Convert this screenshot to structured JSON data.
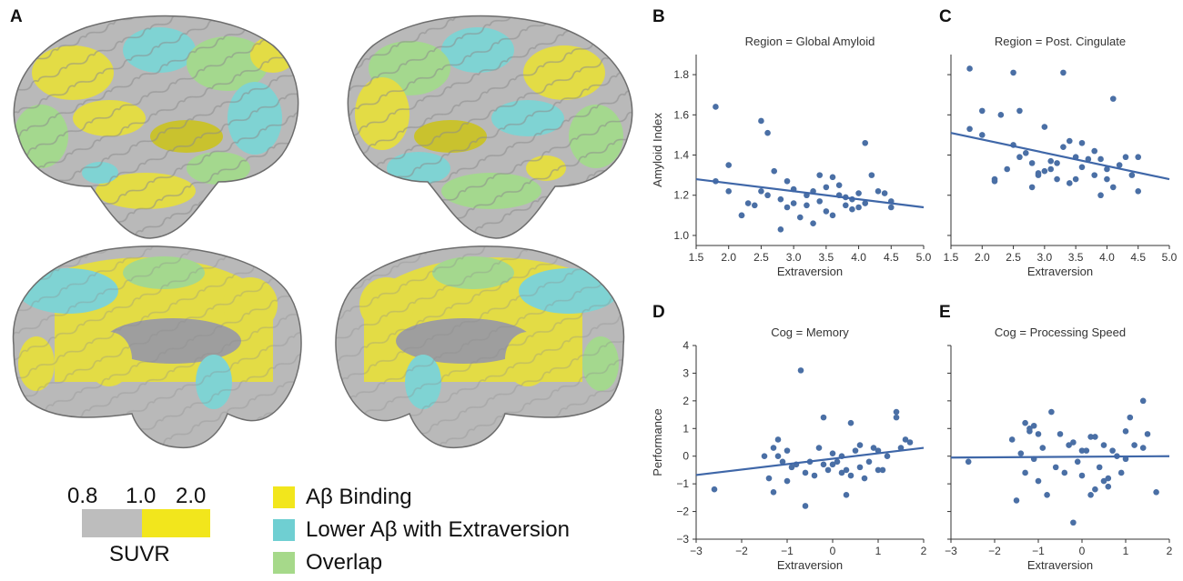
{
  "panels": {
    "A": "A",
    "B": "B",
    "C": "C",
    "D": "D",
    "E": "E"
  },
  "colors": {
    "cortex": "#b8b8b8",
    "binding": "#e6df3c",
    "lower": "#6fcfd2",
    "overlap": "#9fd48a",
    "point": "#4a6fa5",
    "line": "#3f67a8",
    "scale_gray": "#bdbdbd",
    "scale_yellow": "#f2e61c"
  },
  "scale": {
    "tick_low": "0.8",
    "tick_mid": "1.0",
    "tick_high": "2.0",
    "label": "SUVR"
  },
  "legend": [
    {
      "label": "Aβ Binding",
      "color": "#f2e61c",
      "icon": "yellow-swatch"
    },
    {
      "label": "Lower Aβ with Extraversion",
      "color": "#6fcfd2",
      "icon": "cyan-swatch"
    },
    {
      "label": "Overlap",
      "color": "#a6d98a",
      "icon": "green-swatch"
    }
  ],
  "chart_data": [
    {
      "id": "B",
      "type": "scatter",
      "title": "Region = Global Amyloid",
      "xlabel": "Extraversion",
      "ylabel": "Amyloid Index",
      "xlim": [
        1.5,
        5.0
      ],
      "ylim": [
        0.95,
        1.9
      ],
      "xticks": [
        "1.5",
        "2.0",
        "2.5",
        "3.0",
        "3.5",
        "4.0",
        "4.5",
        "5.0"
      ],
      "yticks": [
        "1.0",
        "1.2",
        "1.4",
        "1.6",
        "1.8"
      ],
      "show_yticklabels": true,
      "trend": [
        [
          1.5,
          1.28
        ],
        [
          5.0,
          1.14
        ]
      ],
      "points": [
        [
          1.8,
          1.64
        ],
        [
          1.8,
          1.27
        ],
        [
          2.0,
          1.35
        ],
        [
          2.0,
          1.22
        ],
        [
          2.2,
          1.1
        ],
        [
          2.3,
          1.16
        ],
        [
          2.4,
          1.15
        ],
        [
          2.5,
          1.57
        ],
        [
          2.5,
          1.22
        ],
        [
          2.6,
          1.51
        ],
        [
          2.6,
          1.2
        ],
        [
          2.7,
          1.32
        ],
        [
          2.8,
          1.18
        ],
        [
          2.8,
          1.03
        ],
        [
          2.9,
          1.27
        ],
        [
          2.9,
          1.14
        ],
        [
          3.0,
          1.23
        ],
        [
          3.0,
          1.16
        ],
        [
          3.1,
          1.09
        ],
        [
          3.2,
          1.2
        ],
        [
          3.2,
          1.15
        ],
        [
          3.3,
          1.22
        ],
        [
          3.3,
          1.06
        ],
        [
          3.4,
          1.3
        ],
        [
          3.4,
          1.17
        ],
        [
          3.5,
          1.12
        ],
        [
          3.5,
          1.24
        ],
        [
          3.6,
          1.29
        ],
        [
          3.6,
          1.1
        ],
        [
          3.7,
          1.2
        ],
        [
          3.8,
          1.19
        ],
        [
          3.8,
          1.15
        ],
        [
          3.9,
          1.13
        ],
        [
          3.9,
          1.18
        ],
        [
          4.0,
          1.21
        ],
        [
          4.0,
          1.14
        ],
        [
          4.1,
          1.46
        ],
        [
          4.1,
          1.16
        ],
        [
          4.2,
          1.3
        ],
        [
          4.3,
          1.22
        ],
        [
          4.4,
          1.21
        ],
        [
          4.5,
          1.14
        ],
        [
          4.5,
          1.17
        ],
        [
          2.2,
          1.1
        ],
        [
          3.7,
          1.25
        ]
      ]
    },
    {
      "id": "C",
      "type": "scatter",
      "title": "Region = Post. Cingulate",
      "xlabel": "Extraversion",
      "ylabel": "",
      "xlim": [
        1.5,
        5.0
      ],
      "ylim": [
        0.95,
        1.9
      ],
      "xticks": [
        "1.5",
        "2.0",
        "2.5",
        "3.0",
        "3.5",
        "4.0",
        "4.5",
        "5.0"
      ],
      "yticks": [
        "1.0",
        "1.2",
        "1.4",
        "1.6",
        "1.8"
      ],
      "show_yticklabels": false,
      "trend": [
        [
          1.5,
          1.51
        ],
        [
          5.0,
          1.28
        ]
      ],
      "points": [
        [
          1.8,
          1.83
        ],
        [
          1.8,
          1.53
        ],
        [
          2.0,
          1.62
        ],
        [
          2.0,
          1.5
        ],
        [
          2.2,
          1.28
        ],
        [
          2.2,
          1.27
        ],
        [
          2.3,
          1.6
        ],
        [
          2.4,
          1.33
        ],
        [
          2.5,
          1.81
        ],
        [
          2.5,
          1.45
        ],
        [
          2.6,
          1.39
        ],
        [
          2.6,
          1.62
        ],
        [
          2.7,
          1.41
        ],
        [
          2.8,
          1.36
        ],
        [
          2.8,
          1.24
        ],
        [
          2.9,
          1.3
        ],
        [
          3.0,
          1.54
        ],
        [
          3.0,
          1.32
        ],
        [
          3.1,
          1.37
        ],
        [
          3.2,
          1.28
        ],
        [
          3.2,
          1.36
        ],
        [
          3.3,
          1.81
        ],
        [
          3.3,
          1.44
        ],
        [
          3.4,
          1.47
        ],
        [
          3.4,
          1.26
        ],
        [
          3.5,
          1.39
        ],
        [
          3.5,
          1.28
        ],
        [
          3.6,
          1.46
        ],
        [
          3.6,
          1.34
        ],
        [
          3.7,
          1.38
        ],
        [
          3.8,
          1.42
        ],
        [
          3.8,
          1.3
        ],
        [
          3.9,
          1.2
        ],
        [
          3.9,
          1.38
        ],
        [
          4.0,
          1.28
        ],
        [
          4.0,
          1.33
        ],
        [
          4.1,
          1.68
        ],
        [
          4.1,
          1.24
        ],
        [
          4.2,
          1.35
        ],
        [
          4.3,
          1.39
        ],
        [
          4.4,
          1.3
        ],
        [
          4.5,
          1.22
        ],
        [
          4.5,
          1.39
        ],
        [
          3.1,
          1.33
        ],
        [
          2.9,
          1.31
        ]
      ]
    },
    {
      "id": "D",
      "type": "scatter",
      "title": "Cog = Memory",
      "xlabel": "Extraversion",
      "ylabel": "Performance",
      "xlim": [
        -3,
        2
      ],
      "ylim": [
        -3,
        4
      ],
      "xticks": [
        "−3",
        "−2",
        "−1",
        "0",
        "1",
        "2"
      ],
      "yticks": [
        "−3",
        "−2",
        "−1",
        "0",
        "1",
        "2",
        "3",
        "4"
      ],
      "show_yticklabels": true,
      "trend": [
        [
          -3,
          -0.68
        ],
        [
          2,
          0.3
        ]
      ],
      "points": [
        [
          -2.6,
          -1.2
        ],
        [
          -1.5,
          0.0
        ],
        [
          -1.4,
          -0.8
        ],
        [
          -1.3,
          0.3
        ],
        [
          -1.3,
          -1.3
        ],
        [
          -1.2,
          0.6
        ],
        [
          -1.2,
          0.0
        ],
        [
          -1.1,
          -0.2
        ],
        [
          -1.0,
          0.2
        ],
        [
          -1.0,
          -0.9
        ],
        [
          -0.8,
          -0.3
        ],
        [
          -0.7,
          3.1
        ],
        [
          -0.6,
          -1.8
        ],
        [
          -0.5,
          -0.2
        ],
        [
          -0.4,
          -0.7
        ],
        [
          -0.3,
          0.3
        ],
        [
          -0.2,
          1.4
        ],
        [
          -0.2,
          -0.3
        ],
        [
          -0.1,
          -0.5
        ],
        [
          0.0,
          0.1
        ],
        [
          0.0,
          -0.3
        ],
        [
          0.1,
          -0.2
        ],
        [
          0.2,
          0.0
        ],
        [
          0.2,
          -0.6
        ],
        [
          0.3,
          -0.5
        ],
        [
          0.3,
          -1.4
        ],
        [
          0.4,
          1.2
        ],
        [
          0.4,
          -0.7
        ],
        [
          0.5,
          0.2
        ],
        [
          0.6,
          -0.4
        ],
        [
          0.6,
          0.4
        ],
        [
          0.7,
          -0.8
        ],
        [
          0.8,
          -0.2
        ],
        [
          0.9,
          0.3
        ],
        [
          1.0,
          -0.5
        ],
        [
          1.0,
          0.2
        ],
        [
          1.1,
          -0.5
        ],
        [
          1.2,
          0.0
        ],
        [
          1.4,
          1.6
        ],
        [
          1.4,
          1.4
        ],
        [
          1.5,
          0.3
        ],
        [
          1.6,
          0.6
        ],
        [
          1.7,
          0.5
        ],
        [
          -0.9,
          -0.4
        ],
        [
          -0.6,
          -0.6
        ]
      ]
    },
    {
      "id": "E",
      "type": "scatter",
      "title": "Cog = Processing Speed",
      "xlabel": "Extraversion",
      "ylabel": "",
      "xlim": [
        -3,
        2
      ],
      "ylim": [
        -3,
        4
      ],
      "xticks": [
        "−3",
        "−2",
        "−1",
        "0",
        "1",
        "2"
      ],
      "yticks": [
        "−3",
        "−2",
        "−1",
        "0",
        "1",
        "2",
        "3",
        "4"
      ],
      "show_yticklabels": false,
      "trend": [
        [
          -3,
          -0.05
        ],
        [
          2,
          0.0
        ]
      ],
      "points": [
        [
          -2.6,
          -0.2
        ],
        [
          -1.6,
          0.6
        ],
        [
          -1.5,
          -1.6
        ],
        [
          -1.4,
          0.1
        ],
        [
          -1.3,
          1.2
        ],
        [
          -1.3,
          -0.6
        ],
        [
          -1.2,
          1.0
        ],
        [
          -1.2,
          0.9
        ],
        [
          -1.1,
          1.1
        ],
        [
          -1.1,
          -0.1
        ],
        [
          -1.0,
          0.8
        ],
        [
          -1.0,
          -0.9
        ],
        [
          -0.9,
          0.3
        ],
        [
          -0.8,
          -1.4
        ],
        [
          -0.7,
          1.6
        ],
        [
          -0.6,
          -0.4
        ],
        [
          -0.5,
          0.8
        ],
        [
          -0.4,
          -0.6
        ],
        [
          -0.3,
          0.4
        ],
        [
          -0.2,
          -2.4
        ],
        [
          -0.2,
          0.5
        ],
        [
          -0.1,
          -0.2
        ],
        [
          0.0,
          -0.7
        ],
        [
          0.0,
          0.2
        ],
        [
          0.1,
          0.2
        ],
        [
          0.2,
          -1.4
        ],
        [
          0.2,
          0.7
        ],
        [
          0.3,
          -1.2
        ],
        [
          0.3,
          0.7
        ],
        [
          0.4,
          -0.4
        ],
        [
          0.5,
          -0.9
        ],
        [
          0.5,
          0.4
        ],
        [
          0.6,
          -0.8
        ],
        [
          0.6,
          -1.1
        ],
        [
          0.7,
          0.2
        ],
        [
          0.8,
          0.0
        ],
        [
          0.9,
          -0.6
        ],
        [
          1.0,
          0.9
        ],
        [
          1.0,
          -0.1
        ],
        [
          1.1,
          1.4
        ],
        [
          1.2,
          0.4
        ],
        [
          1.4,
          2.0
        ],
        [
          1.4,
          0.3
        ],
        [
          1.5,
          0.8
        ],
        [
          1.7,
          -1.3
        ]
      ]
    }
  ]
}
